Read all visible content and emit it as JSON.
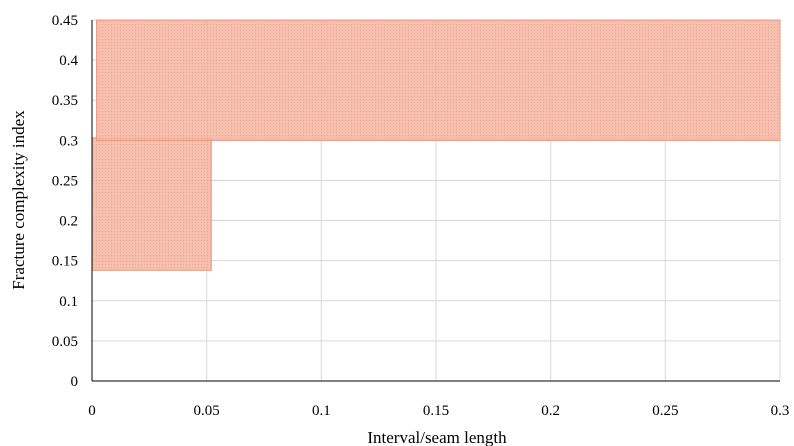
{
  "chart_data": {
    "type": "area",
    "title": "",
    "xlabel": "Interval/seam length",
    "ylabel": "Fracture complexity index",
    "xlim": [
      0,
      0.3
    ],
    "ylim": [
      0,
      0.45
    ],
    "xticks": [
      "0",
      "0.05",
      "0.1",
      "0.15",
      "0.2",
      "0.25",
      "0.3"
    ],
    "yticks": [
      "0",
      "0.05",
      "0.1",
      "0.15",
      "0.2",
      "0.25",
      "0.3",
      "0.35",
      "0.4",
      "0.45"
    ],
    "grid": true,
    "regions": [
      {
        "x": [
          0,
          0.052
        ],
        "y": [
          0.138,
          0.303
        ]
      },
      {
        "x": [
          0.002,
          0.3
        ],
        "y": [
          0.3,
          0.45
        ]
      }
    ],
    "colors": {
      "region_fill": "#f2a990",
      "grid": "#d9d9d9",
      "axis": "#000000"
    }
  }
}
